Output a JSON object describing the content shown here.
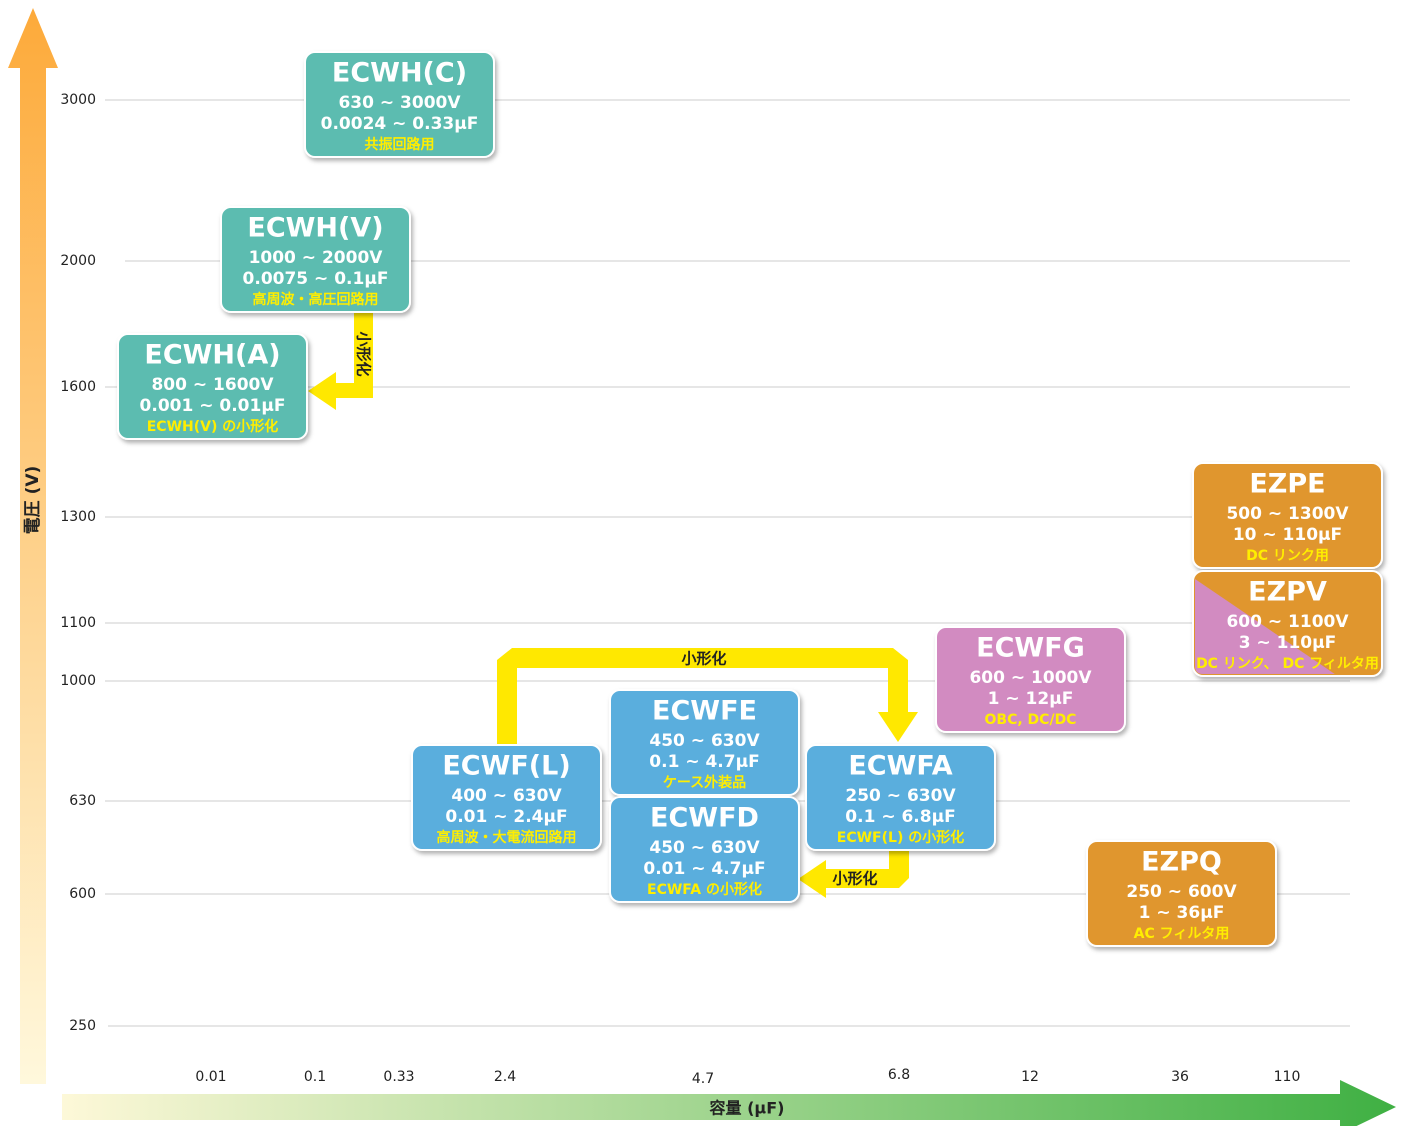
{
  "axes": {
    "y_label": "電圧 (V)",
    "x_label": "容量 (μF)",
    "y_ticks": [
      "3000",
      "2000",
      "1600",
      "1300",
      "1100",
      "1000",
      "630",
      "600",
      "250"
    ],
    "x_ticks": [
      "0.01",
      "0.1",
      "0.33",
      "2.4",
      "4.7",
      "6.8",
      "12",
      "36",
      "110"
    ]
  },
  "boxes": [
    {
      "title": "ECWH(C)",
      "voltage": "630 ~ 3000V",
      "capacitance": "0.0024 ~ 0.33μF",
      "note": "共振回路用"
    },
    {
      "title": "ECWH(V)",
      "voltage": "1000 ~ 2000V",
      "capacitance": "0.0075 ~ 0.1μF",
      "note": "高周波・高圧回路用"
    },
    {
      "title": "ECWH(A)",
      "voltage": "800 ~ 1600V",
      "capacitance": "0.001 ~ 0.01μF",
      "note": "ECWH(V) の小形化"
    },
    {
      "title": "EZPE",
      "voltage": "500 ~ 1300V",
      "capacitance": "10 ~ 110μF",
      "note": "DC リンク用"
    },
    {
      "title": "EZPV",
      "voltage": "600 ~ 1100V",
      "capacitance": "3 ~ 110μF",
      "note": "DC リンク、 DC フィルタ用"
    },
    {
      "title": "ECWFG",
      "voltage": "600 ~ 1000V",
      "capacitance": "1 ~ 12μF",
      "note": "OBC, DC/DC"
    },
    {
      "title": "ECWFE",
      "voltage": "450 ~ 630V",
      "capacitance": "0.1 ~ 4.7μF",
      "note": "ケース外装品"
    },
    {
      "title": "ECWF(L)",
      "voltage": "400 ~ 630V",
      "capacitance": "0.01 ~ 2.4μF",
      "note": "高周波・大電流回路用"
    },
    {
      "title": "ECWFA",
      "voltage": "250 ~ 630V",
      "capacitance": "0.1 ~ 6.8μF",
      "note": "ECWF(L) の小形化"
    },
    {
      "title": "ECWFD",
      "voltage": "450 ~ 630V",
      "capacitance": "0.01 ~ 4.7μF",
      "note": "ECWFA の小形化"
    },
    {
      "title": "EZPQ",
      "voltage": "250 ~ 600V",
      "capacitance": "1 ~ 36μF",
      "note": "AC フィルタ用"
    }
  ],
  "arrows": [
    {
      "label": "小形化"
    },
    {
      "label": "小形化"
    },
    {
      "label": "小形化"
    }
  ]
}
